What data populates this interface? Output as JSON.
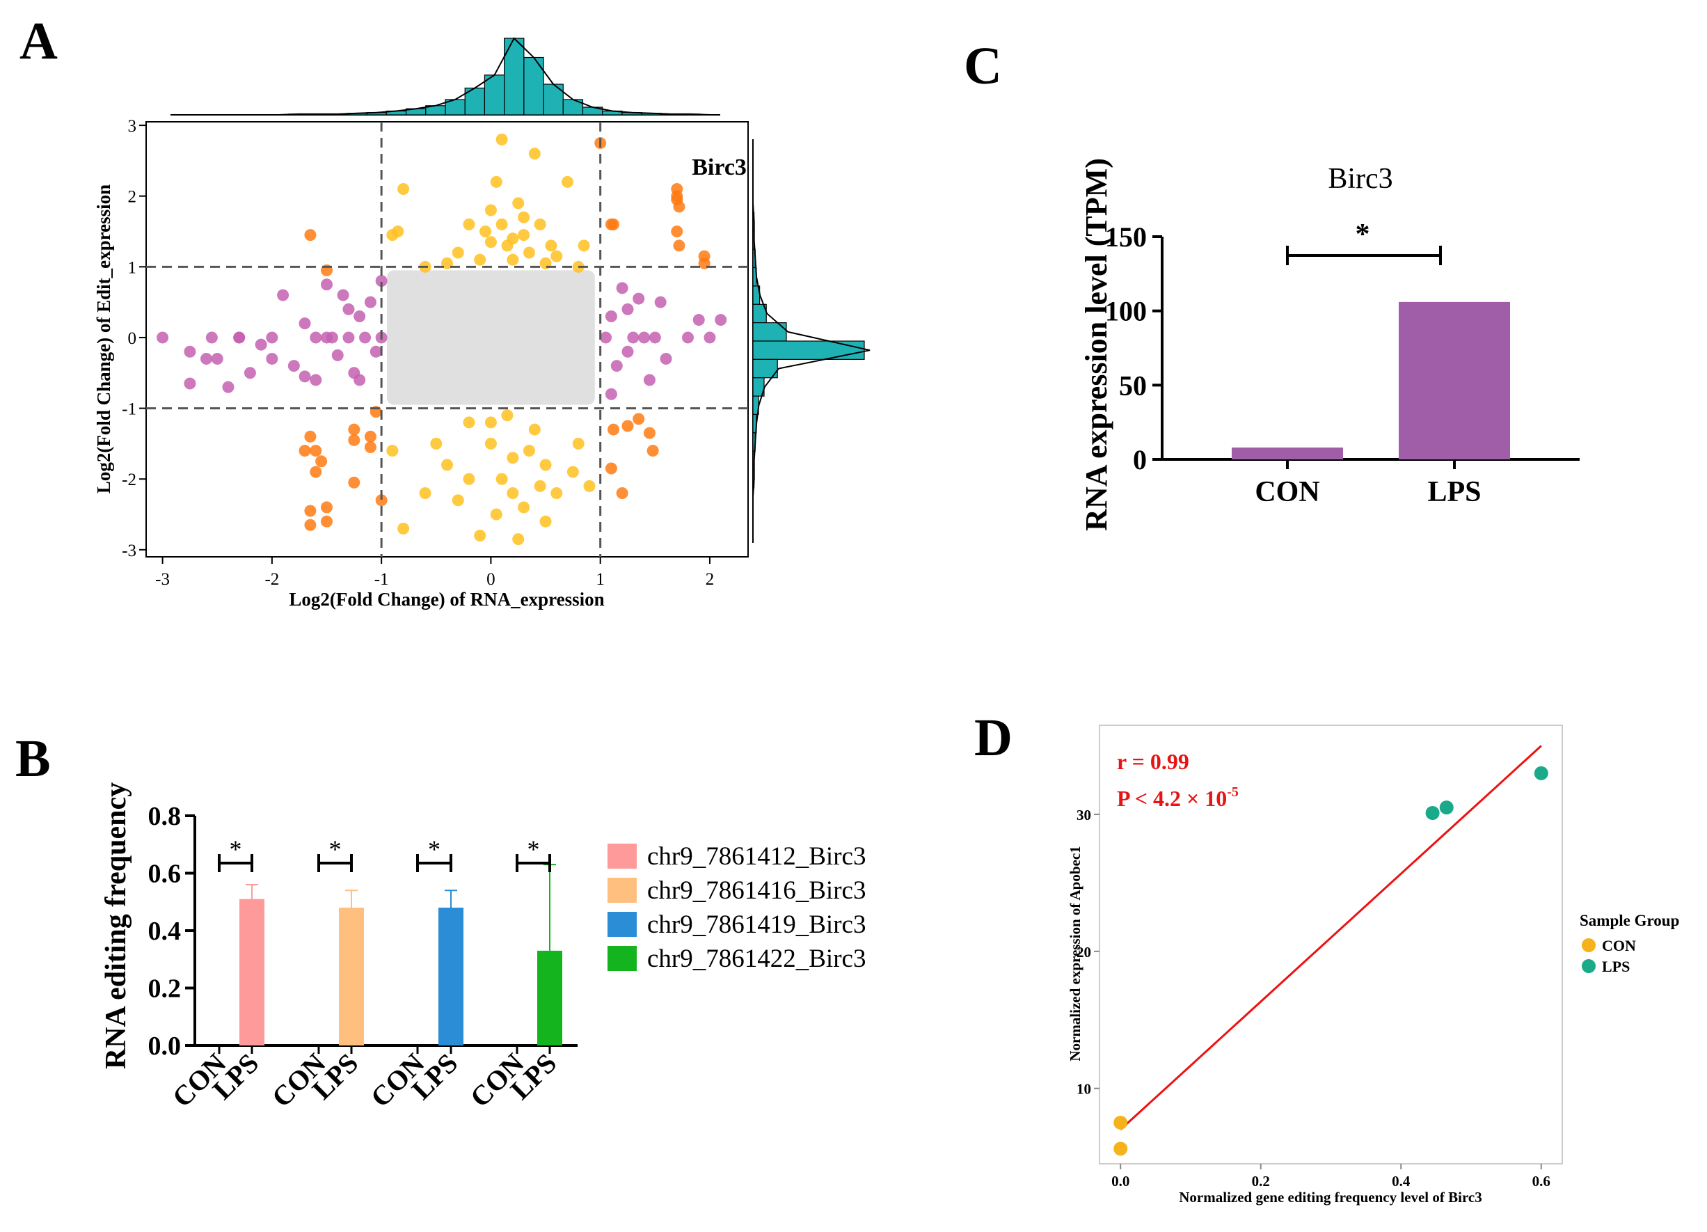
{
  "colors": {
    "grey_point": "#e0e0e0",
    "yellow_point": "#ffbf1f",
    "orange_point": "#ff7a12",
    "purple_point": "#c45fb0",
    "histogram": "#1fb2b5",
    "bar_purple": "#a05ea8",
    "red_line": "#ee1111",
    "con_point": "#f5b21a",
    "lps_point": "#1aa989"
  },
  "chart_data": [
    {
      "panel": "A",
      "type": "scatter",
      "xlabel": "Log2(Fold Change) of RNA_expression",
      "ylabel": "Log2(Fold Change) of Edit_expression",
      "xlim": [
        -3.15,
        2.35
      ],
      "ylim": [
        -3.1,
        3.05
      ],
      "xticks": [
        "-3",
        "-2",
        "-1",
        "0",
        "1",
        "2"
      ],
      "yticks": [
        "-3",
        "-2",
        "-1",
        "0",
        "1",
        "2",
        "3"
      ],
      "xtick_values": [
        -3,
        -2,
        -1,
        0,
        1,
        2
      ],
      "ytick_values": [
        -3,
        -2,
        -1,
        0,
        1,
        2,
        3
      ],
      "threshold_lines": {
        "x": [
          -1,
          1
        ],
        "y": [
          -1,
          1
        ]
      },
      "annotation": "Birc3",
      "annotation_at": [
        1.9,
        2.3
      ],
      "grey_region": {
        "x": [
          -0.95,
          0.95
        ],
        "y": [
          -0.95,
          0.95
        ]
      },
      "series": [
        {
          "name": "orange",
          "points": [
            [
              -1.65,
              1.45
            ],
            [
              -1.5,
              0.95
            ],
            [
              -1.65,
              -1.4
            ],
            [
              -1.6,
              -1.6
            ],
            [
              -1.7,
              -1.6
            ],
            [
              -1.55,
              -1.75
            ],
            [
              -1.6,
              -1.9
            ],
            [
              -1.65,
              -2.45
            ],
            [
              -1.5,
              -2.4
            ],
            [
              -1.5,
              -2.6
            ],
            [
              -1.65,
              -2.65
            ],
            [
              -1.25,
              -1.3
            ],
            [
              -1.25,
              -1.45
            ],
            [
              -1.25,
              -2.05
            ],
            [
              -1.1,
              -1.4
            ],
            [
              -1.1,
              -1.55
            ],
            [
              -1.0,
              -2.3
            ],
            [
              -1.05,
              -1.05
            ],
            [
              1.0,
              2.75
            ],
            [
              1.1,
              1.6
            ],
            [
              1.12,
              1.6
            ],
            [
              1.12,
              -1.3
            ],
            [
              1.25,
              -1.25
            ],
            [
              1.35,
              -1.15
            ],
            [
              1.45,
              -1.35
            ],
            [
              1.48,
              -1.6
            ],
            [
              1.1,
              -1.85
            ],
            [
              1.2,
              -2.2
            ],
            [
              1.7,
              2.1
            ],
            [
              1.7,
              2.0
            ],
            [
              1.7,
              1.95
            ],
            [
              1.72,
              1.85
            ],
            [
              1.7,
              1.5
            ],
            [
              1.72,
              1.3
            ],
            [
              1.95,
              1.15
            ],
            [
              1.95,
              1.05
            ]
          ]
        },
        {
          "name": "yellow",
          "points": [
            [
              -0.9,
              1.45
            ],
            [
              -0.85,
              1.5
            ],
            [
              -0.8,
              2.1
            ],
            [
              -0.6,
              1.0
            ],
            [
              -0.4,
              1.05
            ],
            [
              -0.3,
              1.2
            ],
            [
              -0.2,
              1.6
            ],
            [
              -0.1,
              1.1
            ],
            [
              0,
              1.8
            ],
            [
              0.05,
              2.2
            ],
            [
              0.1,
              2.8
            ],
            [
              0.15,
              1.3
            ],
            [
              0.2,
              1.4
            ],
            [
              0.25,
              1.9
            ],
            [
              0.3,
              1.7
            ],
            [
              0.35,
              1.2
            ],
            [
              0.4,
              2.6
            ],
            [
              0.45,
              1.6
            ],
            [
              0.5,
              1.05
            ],
            [
              0.55,
              1.3
            ],
            [
              0.6,
              1.15
            ],
            [
              0.7,
              2.2
            ],
            [
              0.8,
              1.0
            ],
            [
              0.85,
              1.3
            ],
            [
              -0.05,
              1.5
            ],
            [
              0.0,
              1.35
            ],
            [
              0.1,
              1.6
            ],
            [
              0.2,
              1.1
            ],
            [
              0.3,
              1.45
            ],
            [
              -0.2,
              -1.2
            ],
            [
              0,
              -1.5
            ],
            [
              0.1,
              -2.0
            ],
            [
              0.2,
              -1.7
            ],
            [
              0.3,
              -2.4
            ],
            [
              0.4,
              -1.3
            ],
            [
              0.5,
              -2.6
            ],
            [
              -0.4,
              -1.8
            ],
            [
              -0.6,
              -2.2
            ],
            [
              -0.8,
              -2.7
            ],
            [
              -0.9,
              -1.6
            ],
            [
              0.6,
              -2.2
            ],
            [
              0.75,
              -1.9
            ],
            [
              0.9,
              -2.1
            ],
            [
              0.8,
              -1.5
            ],
            [
              -0.1,
              -2.8
            ],
            [
              0.05,
              -2.5
            ],
            [
              0.25,
              -2.85
            ],
            [
              0.45,
              -2.1
            ],
            [
              -0.3,
              -2.3
            ],
            [
              0.15,
              -1.1
            ],
            [
              0.35,
              -1.6
            ],
            [
              -0.5,
              -1.5
            ],
            [
              0,
              -1.2
            ],
            [
              0.2,
              -2.2
            ],
            [
              -0.2,
              -2.0
            ],
            [
              0.5,
              -1.8
            ]
          ]
        },
        {
          "name": "purple",
          "points": [
            [
              -3.0,
              0.0
            ],
            [
              -2.75,
              -0.2
            ],
            [
              -2.75,
              -0.65
            ],
            [
              -2.55,
              0.0
            ],
            [
              -2.5,
              -0.3
            ],
            [
              -2.4,
              -0.7
            ],
            [
              -2.3,
              0.0
            ],
            [
              -2.2,
              -0.5
            ],
            [
              -2.1,
              -0.1
            ],
            [
              -2.0,
              -0.3
            ],
            [
              -1.9,
              0.6
            ],
            [
              -1.8,
              -0.4
            ],
            [
              -1.7,
              0.2
            ],
            [
              -1.6,
              -0.6
            ],
            [
              -1.5,
              0.75
            ],
            [
              -1.45,
              0.0
            ],
            [
              -1.4,
              -0.25
            ],
            [
              -1.3,
              0.4
            ],
            [
              -1.2,
              -0.6
            ],
            [
              -1.15,
              0.0
            ],
            [
              -1.1,
              0.5
            ],
            [
              -1.05,
              -0.2
            ],
            [
              -1.0,
              0.8
            ],
            [
              -1.2,
              0.3
            ],
            [
              -1.5,
              0.0
            ],
            [
              -2.3,
              0.0
            ],
            [
              -2.0,
              0.0
            ],
            [
              -1.6,
              0.0
            ],
            [
              -1.3,
              0.0
            ],
            [
              -1.0,
              0.0
            ],
            [
              -2.6,
              -0.3
            ],
            [
              -1.7,
              -0.55
            ],
            [
              -1.25,
              -0.5
            ],
            [
              -1.35,
              0.6
            ],
            [
              1.05,
              0.0
            ],
            [
              1.1,
              0.3
            ],
            [
              1.15,
              -0.4
            ],
            [
              1.2,
              0.7
            ],
            [
              1.25,
              -0.2
            ],
            [
              1.3,
              0.0
            ],
            [
              1.35,
              0.55
            ],
            [
              1.45,
              -0.6
            ],
            [
              1.5,
              0.0
            ],
            [
              1.6,
              -0.3
            ],
            [
              1.8,
              0.0
            ],
            [
              1.9,
              0.25
            ],
            [
              2.0,
              0.0
            ],
            [
              2.1,
              0.25
            ],
            [
              1.1,
              -0.8
            ],
            [
              1.25,
              0.4
            ],
            [
              1.4,
              0.0
            ],
            [
              1.55,
              0.5
            ]
          ]
        }
      ],
      "top_histogram_bins": [
        0,
        0,
        0,
        0,
        0,
        0,
        1,
        1,
        1,
        2,
        3,
        5,
        8,
        12,
        20,
        35,
        52,
        100,
        75,
        40,
        20,
        10,
        5,
        3,
        2,
        1,
        1,
        0
      ],
      "right_histogram_bins": [
        0,
        0,
        0,
        0,
        1,
        1,
        2,
        3,
        6,
        12,
        30,
        100,
        22,
        10,
        5,
        3,
        2,
        1,
        1,
        0,
        0,
        0
      ]
    },
    {
      "panel": "B",
      "type": "bar",
      "ylabel": "RNA editing frequency",
      "ylim": [
        0,
        0.8
      ],
      "yticks": [
        "0.0",
        "0.2",
        "0.4",
        "0.6",
        "0.8"
      ],
      "ytick_values": [
        0,
        0.2,
        0.4,
        0.6,
        0.8
      ],
      "categories": [
        "CON",
        "LPS"
      ],
      "significance": "*",
      "series": [
        {
          "name": "chr9_7861412_Birc3",
          "color": "#ff9a9a",
          "values": [
            0,
            0.51
          ],
          "error": [
            0,
            0.05
          ]
        },
        {
          "name": "chr9_7861416_Birc3",
          "color": "#ffbf7f",
          "values": [
            0,
            0.48
          ],
          "error": [
            0,
            0.06
          ]
        },
        {
          "name": "chr9_7861419_Birc3",
          "color": "#2a8dd6",
          "values": [
            0,
            0.48
          ],
          "error": [
            0,
            0.06
          ]
        },
        {
          "name": "chr9_7861422_Birc3",
          "color": "#14b41e",
          "values": [
            0,
            0.33
          ],
          "error": [
            0,
            0.3
          ]
        }
      ]
    },
    {
      "panel": "C",
      "type": "bar",
      "title": "Birc3",
      "ylabel": "RNA expression level (TPM)",
      "ylim": [
        0,
        150
      ],
      "yticks": [
        "0",
        "50",
        "100",
        "150"
      ],
      "ytick_values": [
        0,
        50,
        100,
        150
      ],
      "categories": [
        "CON",
        "LPS"
      ],
      "values": [
        8,
        106
      ],
      "significance": "*"
    },
    {
      "panel": "D",
      "type": "scatter",
      "xlabel": "Normalized gene editing frequency level of Birc3",
      "ylabel": "Normalized expression of Apobec1",
      "xlim": [
        -0.03,
        0.63
      ],
      "ylim": [
        4.5,
        36.5
      ],
      "xticks": [
        "0.0",
        "0.2",
        "0.4",
        "0.6"
      ],
      "yticks": [
        "10",
        "20",
        "30"
      ],
      "xtick_values": [
        0,
        0.2,
        0.4,
        0.6
      ],
      "ytick_values": [
        10,
        20,
        30
      ],
      "annotation_r": "r = 0.99",
      "annotation_p": "P < 4.2 × 10",
      "annotation_p_exp": "-5",
      "regression": [
        [
          0.0,
          7.0
        ],
        [
          0.6,
          35.0
        ]
      ],
      "legend_title": "Sample Group",
      "series": [
        {
          "name": "CON",
          "color": "#f5b21a",
          "points": [
            [
              0.0,
              7.5
            ],
            [
              0.0,
              5.6
            ]
          ]
        },
        {
          "name": "LPS",
          "color": "#1aa989",
          "points": [
            [
              0.445,
              30.1
            ],
            [
              0.465,
              30.5
            ],
            [
              0.6,
              33.0
            ]
          ]
        }
      ]
    }
  ]
}
